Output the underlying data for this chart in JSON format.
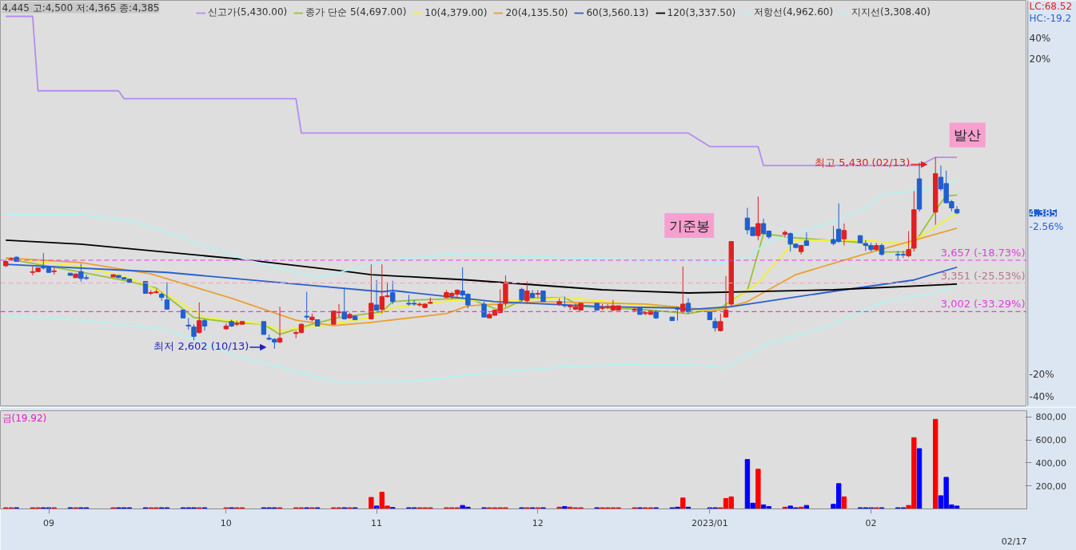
{
  "chart_data": [
    {
      "type": "candlestick",
      "log": true,
      "tick_labels": false,
      "legend": "top",
      "xlim": [
        "2022-08-23",
        "2023-03-02"
      ],
      "ylim": [
        2090,
        9920
      ],
      "x": [
        "2022-08-24",
        "2022-08-25",
        "2022-08-26",
        "2022-08-29",
        "2022-08-30",
        "2022-08-31",
        "2022-09-01",
        "2022-09-02",
        "2022-09-05",
        "2022-09-06",
        "2022-09-07",
        "2022-09-08",
        "2022-09-13",
        "2022-09-14",
        "2022-09-15",
        "2022-09-16",
        "2022-09-19",
        "2022-09-20",
        "2022-09-21",
        "2022-09-22",
        "2022-09-23",
        "2022-09-26",
        "2022-09-27",
        "2022-09-28",
        "2022-09-29",
        "2022-09-30",
        "2022-10-04",
        "2022-10-05",
        "2022-10-06",
        "2022-10-07",
        "2022-10-11",
        "2022-10-12",
        "2022-10-13",
        "2022-10-14",
        "2022-10-17",
        "2022-10-18",
        "2022-10-19",
        "2022-10-20",
        "2022-10-21",
        "2022-10-24",
        "2022-10-25",
        "2022-10-26",
        "2022-10-27",
        "2022-10-28",
        "2022-10-31",
        "2022-11-01",
        "2022-11-02",
        "2022-11-03",
        "2022-11-04",
        "2022-11-07",
        "2022-11-08",
        "2022-11-09",
        "2022-11-10",
        "2022-11-11",
        "2022-11-14",
        "2022-11-15",
        "2022-11-16",
        "2022-11-17",
        "2022-11-18",
        "2022-11-21",
        "2022-11-22",
        "2022-11-23",
        "2022-11-24",
        "2022-11-25",
        "2022-11-28",
        "2022-11-29",
        "2022-11-30",
        "2022-12-01",
        "2022-12-02",
        "2022-12-05",
        "2022-12-06",
        "2022-12-07",
        "2022-12-08",
        "2022-12-09",
        "2022-12-12",
        "2022-12-13",
        "2022-12-14",
        "2022-12-15",
        "2022-12-16",
        "2022-12-19",
        "2022-12-20",
        "2022-12-21",
        "2022-12-22",
        "2022-12-23",
        "2022-12-26",
        "2022-12-27",
        "2022-12-28",
        "2022-12-29",
        "2023-01-02",
        "2023-01-03",
        "2023-01-04",
        "2023-01-05",
        "2023-01-06",
        "2023-01-09",
        "2023-01-10",
        "2023-01-11",
        "2023-01-12",
        "2023-01-13",
        "2023-01-16",
        "2023-01-17",
        "2023-01-18",
        "2023-01-19",
        "2023-01-20",
        "2023-01-25",
        "2023-01-26",
        "2023-01-27",
        "2023-01-30",
        "2023-01-31",
        "2023-02-01",
        "2023-02-02",
        "2023-02-03",
        "2023-02-06",
        "2023-02-07",
        "2023-02-08",
        "2023-02-09",
        "2023-02-10",
        "2023-02-13",
        "2023-02-14",
        "2023-02-15",
        "2023-02-16",
        "2023-02-17"
      ],
      "ohlc": [
        [
          3580,
          3660,
          3560,
          3640
        ],
        [
          3670,
          3700,
          3650,
          3680
        ],
        [
          3700,
          3710,
          3640,
          3640
        ],
        [
          3490,
          3570,
          3450,
          3500
        ],
        [
          3500,
          3550,
          3500,
          3550
        ],
        [
          3570,
          3760,
          3530,
          3550
        ],
        [
          3570,
          3570,
          3490,
          3490
        ],
        [
          3500,
          3570,
          3460,
          3510
        ],
        [
          3480,
          3480,
          3450,
          3450
        ],
        [
          3420,
          3470,
          3420,
          3470
        ],
        [
          3500,
          3610,
          3370,
          3410
        ],
        [
          3420,
          3460,
          3390,
          3410
        ],
        [
          3430,
          3460,
          3430,
          3460
        ],
        [
          3450,
          3450,
          3420,
          3420
        ],
        [
          3420,
          3420,
          3400,
          3400
        ],
        [
          3400,
          3400,
          3350,
          3360
        ],
        [
          3370,
          3370,
          3220,
          3220
        ],
        [
          3220,
          3260,
          3200,
          3230
        ],
        [
          3230,
          3270,
          3220,
          3240
        ],
        [
          3210,
          3240,
          3130,
          3170
        ],
        [
          3140,
          3360,
          3030,
          3030
        ],
        [
          3020,
          3020,
          2930,
          2930
        ],
        [
          2850,
          2930,
          2800,
          2840
        ],
        [
          2830,
          2860,
          2690,
          2730
        ],
        [
          2770,
          3110,
          2760,
          2900
        ],
        [
          2900,
          2920,
          2790,
          2840
        ],
        [
          2810,
          2870,
          2800,
          2840
        ],
        [
          2890,
          2910,
          2830,
          2840
        ],
        [
          2860,
          2900,
          2840,
          2870
        ],
        [
          2860,
          2890,
          2860,
          2890
        ],
        [
          2890,
          2890,
          2750,
          2750
        ],
        [
          2710,
          2750,
          2690,
          2700
        ],
        [
          2700,
          2710,
          2602,
          2670
        ],
        [
          2670,
          3060,
          2660,
          2710
        ],
        [
          2760,
          2790,
          2710,
          2770
        ],
        [
          2770,
          2870,
          2760,
          2860
        ],
        [
          2950,
          3240,
          2910,
          2940
        ],
        [
          2910,
          2980,
          2890,
          2940
        ],
        [
          2910,
          2910,
          2840,
          2840
        ],
        [
          2860,
          3010,
          2860,
          3010
        ],
        [
          2990,
          3090,
          2940,
          3000
        ],
        [
          3000,
          3290,
          2910,
          2920
        ],
        [
          2930,
          2990,
          2920,
          2970
        ],
        [
          2950,
          2960,
          2910,
          2910
        ],
        [
          2920,
          3600,
          2910,
          3100
        ],
        [
          3080,
          3390,
          3020,
          3020
        ],
        [
          3030,
          3600,
          2980,
          3180
        ],
        [
          3180,
          3360,
          3170,
          3190
        ],
        [
          3230,
          3380,
          3090,
          3120
        ],
        [
          3100,
          3200,
          3070,
          3090
        ],
        [
          3100,
          3140,
          3070,
          3090
        ],
        [
          3080,
          3110,
          3060,
          3090
        ],
        [
          3050,
          3100,
          3040,
          3090
        ],
        [
          3100,
          3170,
          3090,
          3110
        ],
        [
          3170,
          3260,
          3160,
          3230
        ],
        [
          3190,
          3240,
          3150,
          3220
        ],
        [
          3210,
          3270,
          3160,
          3260
        ],
        [
          3250,
          3560,
          3160,
          3200
        ],
        [
          3210,
          3220,
          3040,
          3080
        ],
        [
          3090,
          3120,
          2940,
          2940
        ],
        [
          2930,
          2990,
          2930,
          2970
        ],
        [
          2960,
          3020,
          2960,
          3020
        ],
        [
          2990,
          3270,
          2990,
          3090
        ],
        [
          3100,
          3450,
          3060,
          3360
        ],
        [
          3270,
          3290,
          3120,
          3140
        ],
        [
          3130,
          3370,
          3100,
          3250
        ],
        [
          3220,
          3260,
          3160,
          3170
        ],
        [
          3210,
          3260,
          3170,
          3220
        ],
        [
          3250,
          3250,
          3120,
          3120
        ],
        [
          3090,
          3160,
          3070,
          3120
        ],
        [
          3080,
          3180,
          3050,
          3070
        ],
        [
          3060,
          3090,
          3020,
          3070
        ],
        [
          3030,
          3090,
          3020,
          3060
        ],
        [
          3020,
          3100,
          3020,
          3100
        ],
        [
          3100,
          3100,
          3020,
          3020
        ],
        [
          3040,
          3090,
          3020,
          3050
        ],
        [
          3050,
          3090,
          3030,
          3060
        ],
        [
          3020,
          3140,
          3010,
          3070
        ],
        [
          3020,
          3070,
          3020,
          3070
        ],
        [
          3020,
          3050,
          3000,
          3030
        ],
        [
          3050,
          3050,
          2970,
          2970
        ],
        [
          2980,
          3010,
          2960,
          2990
        ],
        [
          2970,
          3010,
          2970,
          3010
        ],
        [
          3000,
          3020,
          2920,
          2930
        ],
        [
          2940,
          2940,
          2900,
          2900
        ],
        [
          3040,
          3060,
          2900,
          3030
        ],
        [
          3010,
          3570,
          2980,
          3090
        ],
        [
          3100,
          3160,
          2980,
          3000
        ],
        [
          3000,
          3000,
          2910,
          2910
        ],
        [
          2890,
          2930,
          2780,
          2820
        ],
        [
          2790,
          2980,
          2780,
          2890
        ],
        [
          2940,
          3440,
          2940,
          3020
        ],
        [
          3090,
          3930,
          3060,
          3930
        ],
        [
          4300,
          4470,
          4040,
          4110
        ],
        [
          4150,
          4150,
          4020,
          4020
        ],
        [
          4020,
          4670,
          3950,
          4210
        ],
        [
          4210,
          4290,
          4050,
          4050
        ],
        [
          4090,
          4100,
          3970,
          4000
        ],
        [
          4040,
          4100,
          3990,
          4070
        ],
        [
          4050,
          4070,
          3780,
          3890
        ],
        [
          3890,
          3900,
          3830,
          3840
        ],
        [
          3780,
          3880,
          3740,
          3870
        ],
        [
          3940,
          4070,
          3870,
          3870
        ],
        [
          3960,
          4170,
          3870,
          3900
        ],
        [
          4120,
          4550,
          3910,
          3930
        ],
        [
          3970,
          4210,
          3870,
          4100
        ],
        [
          4020,
          4020,
          3910,
          3910
        ],
        [
          3900,
          3950,
          3790,
          3870
        ],
        [
          3870,
          3910,
          3780,
          3810
        ],
        [
          3810,
          3910,
          3790,
          3870
        ],
        [
          3870,
          3900,
          3720,
          3740
        ],
        [
          3740,
          3790,
          3660,
          3730
        ],
        [
          3740,
          3790,
          3690,
          3730
        ],
        [
          3720,
          4090,
          3700,
          3810
        ],
        [
          3830,
          4770,
          3780,
          4440
        ],
        [
          5000,
          5320,
          4410,
          4450
        ],
        [
          4400,
          5430,
          4190,
          5100
        ],
        [
          5030,
          5260,
          4770,
          4810
        ],
        [
          4910,
          5160,
          4550,
          4560
        ],
        [
          4580,
          4610,
          4410,
          4470
        ],
        [
          4445,
          4500,
          4365,
          4385
        ]
      ],
      "colors": [
        "#e02020",
        "#e02020",
        "#1f5fcf",
        "#e02020",
        "#e02020",
        "#1f5fcf",
        "#1f5fcf",
        "#e02020",
        "#1f5fcf",
        "#e02020",
        "#1f5fcf",
        "#1f5fcf",
        "#e02020",
        "#1f5fcf",
        "#1f5fcf",
        "#1f5fcf",
        "#1f5fcf",
        "#e02020",
        "#e02020",
        "#1f5fcf",
        "#1f5fcf",
        "#1f5fcf",
        "#1f5fcf",
        "#1f5fcf",
        "#e02020",
        "#1f5fcf",
        "#e02020",
        "#1f5fcf",
        "#e02020",
        "#e02020",
        "#1f5fcf",
        "#1f5fcf",
        "#1f5fcf",
        "#e02020",
        "#e02020",
        "#e02020",
        "#1f5fcf",
        "#e02020",
        "#1f5fcf",
        "#e02020",
        "#e02020",
        "#1f5fcf",
        "#e02020",
        "#1f5fcf",
        "#e02020",
        "#1f5fcf",
        "#e02020",
        "#e02020",
        "#1f5fcf",
        "#1f5fcf",
        "#1f5fcf",
        "#e02020",
        "#e02020",
        "#e02020",
        "#e02020",
        "#e02020",
        "#e02020",
        "#1f5fcf",
        "#1f5fcf",
        "#1f5fcf",
        "#e02020",
        "#e02020",
        "#e02020",
        "#e02020",
        "#1f5fcf",
        "#e02020",
        "#1f5fcf",
        "#e02020",
        "#1f5fcf",
        "#e02020",
        "#1f5fcf",
        "#e02020",
        "#e02020",
        "#e02020",
        "#1f5fcf",
        "#e02020",
        "#e02020",
        "#e02020",
        "#e02020",
        "#e02020",
        "#1f5fcf",
        "#e02020",
        "#e02020",
        "#1f5fcf",
        "#1f5fcf",
        "#1f5fcf",
        "#e02020",
        "#1f5fcf",
        "#1f5fcf",
        "#1f5fcf",
        "#e02020",
        "#e02020",
        "#e02020",
        "#1f5fcf",
        "#1f5fcf",
        "#e02020",
        "#1f5fcf",
        "#1f5fcf",
        "#e02020",
        "#1f5fcf",
        "#1f5fcf",
        "#e02020",
        "#1f5fcf",
        "#1f5fcf",
        "#1f5fcf",
        "#e02020",
        "#1f5fcf",
        "#1f5fcf",
        "#1f5fcf",
        "#e02020",
        "#1f5fcf",
        "#1f5fcf",
        "#1f5fcf",
        "#e02020",
        "#e02020",
        "#1f5fcf",
        "#e02020",
        "#1f5fcf",
        "#1f5fcf",
        "#1f5fcf",
        "#1f5fcf"
      ],
      "series": [
        {
          "type": "line",
          "name": "신고가(5,430.00)",
          "color": "#b48cf0",
          "x": [
            "2022-08-24",
            "2022-08-29",
            "2022-08-30",
            "2022-09-14",
            "2022-09-15",
            "2022-10-17",
            "2022-10-18",
            "2022-12-29",
            "2023-01-02",
            "2023-01-11",
            "2023-01-12",
            "2023-02-10",
            "2023-02-13",
            "2023-02-17"
          ],
          "values": [
            9330,
            9330,
            7010,
            7010,
            6800,
            6800,
            5960,
            5960,
            5660,
            5660,
            5260,
            5260,
            5430,
            5430
          ]
        },
        {
          "type": "line",
          "name": "종가 단순 5(4,697.00)",
          "color": "#99c433",
          "x": [
            "2022-08-24",
            "2022-09-07",
            "2022-09-16",
            "2022-09-21",
            "2022-09-28",
            "2022-10-05",
            "2022-10-11",
            "2022-10-14",
            "2022-10-20",
            "2022-10-25",
            "2022-11-02",
            "2022-11-04",
            "2022-11-09",
            "2022-11-18",
            "2022-11-24",
            "2022-11-29",
            "2022-12-06",
            "2022-12-09",
            "2022-12-21",
            "2022-12-29",
            "2023-01-04",
            "2023-01-09",
            "2023-01-12",
            "2023-01-18",
            "2023-01-30",
            "2023-02-03",
            "2023-02-08",
            "2023-02-14",
            "2023-02-15",
            "2023-02-17"
          ],
          "values": [
            3680,
            3495,
            3370,
            3285,
            2935,
            2880,
            2860,
            2750,
            2860,
            2935,
            3000,
            3120,
            3140,
            3160,
            3015,
            3160,
            3170,
            3060,
            3025,
            2980,
            3045,
            3255,
            4050,
            3985,
            3915,
            3775,
            3775,
            4560,
            4680,
            4697
          ]
        },
        {
          "type": "line",
          "name": "10(4,379.00)",
          "color": "#f2f230",
          "x": [
            "2022-08-24",
            "2022-09-07",
            "2022-09-16",
            "2022-09-23",
            "2022-09-30",
            "2022-10-11",
            "2022-10-14",
            "2022-10-21",
            "2022-10-31",
            "2022-11-04",
            "2022-11-16",
            "2022-11-23",
            "2022-12-07",
            "2022-12-21",
            "2023-01-02",
            "2023-01-04",
            "2023-01-11",
            "2023-01-18",
            "2023-01-31",
            "2023-02-08",
            "2023-02-17"
          ],
          "values": [
            3690,
            3570,
            3420,
            3205,
            2935,
            2860,
            2795,
            2835,
            2935,
            3045,
            3140,
            3120,
            3170,
            3070,
            3015,
            3025,
            3355,
            3950,
            3950,
            3890,
            4379
          ]
        },
        {
          "type": "line",
          "name": "20(4,135.50)",
          "color": "#eba030",
          "x": [
            "2022-08-24",
            "2022-09-07",
            "2022-09-20",
            "2022-10-05",
            "2022-10-17",
            "2022-10-24",
            "2022-10-31",
            "2022-11-14",
            "2022-11-18",
            "2022-12-02",
            "2022-12-21",
            "2023-01-03",
            "2023-01-04",
            "2023-01-09",
            "2023-01-18",
            "2023-01-31",
            "2023-02-08",
            "2023-02-17"
          ],
          "values": [
            3690,
            3625,
            3470,
            3160,
            2905,
            2845,
            2880,
            2980,
            3070,
            3120,
            3090,
            3015,
            3025,
            3120,
            3460,
            3750,
            3925,
            4135.5
          ]
        },
        {
          "type": "line",
          "name": "60(3,560.13)",
          "color": "#2a5fd0",
          "x": [
            "2022-08-24",
            "2022-09-23",
            "2022-10-20",
            "2022-11-02",
            "2022-11-04",
            "2022-11-23",
            "2022-12-13",
            "2022-12-27",
            "2022-12-29",
            "2023-01-06",
            "2023-01-26",
            "2023-02-09",
            "2023-02-17"
          ],
          "values": [
            3600,
            3490,
            3320,
            3240,
            3255,
            3120,
            3060,
            3045,
            3025,
            3060,
            3255,
            3390,
            3560.13
          ]
        },
        {
          "type": "line",
          "name": "120(3,337.50)",
          "color": "#000000",
          "x": [
            "2022-08-24",
            "2022-09-07",
            "2022-10-07",
            "2022-10-25",
            "2022-10-31",
            "2022-11-18",
            "2022-12-13",
            "2022-12-29",
            "2023-01-25",
            "2023-02-17"
          ],
          "values": [
            3950,
            3890,
            3670,
            3515,
            3460,
            3390,
            3265,
            3225,
            3265,
            3337.5
          ]
        },
        {
          "type": "line",
          "name": "저항선(4,962.60)",
          "color": "#b4f2f2",
          "x": [
            "2022-08-24",
            "2022-09-07",
            "2022-09-16",
            "2022-09-23",
            "2022-10-07",
            "2022-10-21",
            "2022-11-03",
            "2022-11-16",
            "2022-11-28",
            "2022-12-15",
            "2022-12-29",
            "2023-01-05",
            "2023-01-09",
            "2023-01-13",
            "2023-01-25",
            "2023-01-31",
            "2023-02-03",
            "2023-02-10",
            "2023-02-17"
          ],
          "values": [
            4358,
            4358,
            4265,
            4074,
            3681,
            3420,
            3657,
            3750,
            3715,
            3670,
            3646,
            3625,
            3700,
            3926,
            4240,
            4467,
            4710,
            4780,
            4962.6
          ]
        },
        {
          "type": "line",
          "name": "지지선(3,308.40)",
          "color": "#b4f2f2",
          "x": [
            "2022-08-24",
            "2022-09-07",
            "2022-09-23",
            "2022-10-07",
            "2022-10-25",
            "2022-11-08",
            "2022-11-22",
            "2022-12-06",
            "2022-12-20",
            "2022-12-29",
            "2023-01-05",
            "2023-01-12",
            "2023-01-25",
            "2023-02-03",
            "2023-02-13",
            "2023-02-17"
          ],
          "values": [
            2950,
            2910,
            2800,
            2516,
            2290,
            2300,
            2375,
            2430,
            2454,
            2454,
            2417,
            2635,
            2862,
            3110,
            3236,
            3308.4
          ]
        }
      ],
      "ref_lines": [
        {
          "axis": "y",
          "value": 3657,
          "label": "3,657 (-18.73%)",
          "color": "#e03ce0",
          "line_style": "dashed"
        },
        {
          "axis": "y",
          "value": 3351,
          "label": "3,351 (-25.53%)",
          "color": "#f2a0c0",
          "line_style": "dashed"
        },
        {
          "axis": "y",
          "value": 3002,
          "label": "3,002 (-33.29%)",
          "color": "#e03ce0",
          "line_style": "dashed"
        }
      ],
      "annotations": [
        "4,445 고:4,500 저:4,365 종:4,385",
        "LC:68.52",
        "HC:-19.2",
        "40%",
        "20%",
        "-20%",
        "-40%",
        "4,385",
        "-2.56%",
        {
          "text": "기준봉",
          "x": "2023-01-06",
          "y": 3930
        },
        {
          "text": "발산",
          "x": "2023-02-13",
          "y": 5430
        },
        {
          "text": "최고 5,430 (02/13)",
          "x": "2023-02-13",
          "y": 5430
        },
        {
          "text": "최저 2,602 (10/13)",
          "x": "2022-10-13",
          "y": 2602
        }
      ]
    },
    {
      "type": "bar",
      "xlim": [
        "2022-08-23",
        "2023-03-02"
      ],
      "ylim": [
        0,
        855
      ],
      "xticks": [
        {
          "value": "2022-09-01",
          "label": "09"
        },
        {
          "value": "2022-10-04",
          "label": "10"
        },
        {
          "value": "2022-11-01",
          "label": "11"
        },
        {
          "value": "2022-12-01",
          "label": "12"
        },
        {
          "value": "2023-01-02",
          "label": "2023/01"
        },
        {
          "value": "2023-02-01",
          "label": "02"
        }
      ],
      "yticks": [
        {
          "value": 200,
          "label": "200,00"
        },
        {
          "value": 400,
          "label": "400,00"
        },
        {
          "value": 600,
          "label": "600,00"
        },
        {
          "value": 800,
          "label": "800,00"
        }
      ],
      "x": [
        "2022-08-24",
        "2022-08-25",
        "2022-08-26",
        "2022-08-29",
        "2022-08-30",
        "2022-08-31",
        "2022-09-01",
        "2022-09-02",
        "2022-09-05",
        "2022-09-06",
        "2022-09-07",
        "2022-09-08",
        "2022-09-13",
        "2022-09-14",
        "2022-09-15",
        "2022-09-16",
        "2022-09-19",
        "2022-09-20",
        "2022-09-21",
        "2022-09-22",
        "2022-09-23",
        "2022-09-26",
        "2022-09-27",
        "2022-09-28",
        "2022-09-29",
        "2022-09-30",
        "2022-10-04",
        "2022-10-05",
        "2022-10-06",
        "2022-10-07",
        "2022-10-11",
        "2022-10-12",
        "2022-10-13",
        "2022-10-14",
        "2022-10-17",
        "2022-10-18",
        "2022-10-19",
        "2022-10-20",
        "2022-10-21",
        "2022-10-24",
        "2022-10-25",
        "2022-10-26",
        "2022-10-27",
        "2022-10-28",
        "2022-10-31",
        "2022-11-01",
        "2022-11-02",
        "2022-11-03",
        "2022-11-04",
        "2022-11-07",
        "2022-11-08",
        "2022-11-09",
        "2022-11-10",
        "2022-11-11",
        "2022-11-14",
        "2022-11-15",
        "2022-11-16",
        "2022-11-17",
        "2022-11-18",
        "2022-11-21",
        "2022-11-22",
        "2022-11-23",
        "2022-11-24",
        "2022-11-25",
        "2022-11-28",
        "2022-11-29",
        "2022-11-30",
        "2022-12-01",
        "2022-12-02",
        "2022-12-05",
        "2022-12-06",
        "2022-12-07",
        "2022-12-08",
        "2022-12-09",
        "2022-12-12",
        "2022-12-13",
        "2022-12-14",
        "2022-12-15",
        "2022-12-16",
        "2022-12-19",
        "2022-12-20",
        "2022-12-21",
        "2022-12-22",
        "2022-12-23",
        "2022-12-26",
        "2022-12-27",
        "2022-12-28",
        "2022-12-29",
        "2023-01-02",
        "2023-01-03",
        "2023-01-04",
        "2023-01-05",
        "2023-01-06",
        "2023-01-09",
        "2023-01-10",
        "2023-01-11",
        "2023-01-12",
        "2023-01-13",
        "2023-01-16",
        "2023-01-17",
        "2023-01-18",
        "2023-01-19",
        "2023-01-20",
        "2023-01-25",
        "2023-01-26",
        "2023-01-27",
        "2023-01-30",
        "2023-01-31",
        "2023-02-01",
        "2023-02-02",
        "2023-02-03",
        "2023-02-06",
        "2023-02-07",
        "2023-02-08",
        "2023-02-09",
        "2023-02-10",
        "2023-02-13",
        "2023-02-14",
        "2023-02-15",
        "2023-02-16",
        "2023-02-17"
      ],
      "values": [
        10,
        10,
        10,
        10,
        10,
        10,
        10,
        10,
        10,
        10,
        10,
        10,
        10,
        10,
        10,
        10,
        10,
        10,
        10,
        10,
        10,
        10,
        10,
        10,
        10,
        10,
        10,
        10,
        10,
        10,
        10,
        10,
        10,
        10,
        10,
        10,
        10,
        10,
        10,
        10,
        10,
        10,
        10,
        10,
        100,
        25,
        145,
        25,
        12,
        10,
        10,
        10,
        10,
        10,
        10,
        10,
        10,
        30,
        15,
        10,
        10,
        10,
        10,
        10,
        10,
        10,
        10,
        10,
        10,
        15,
        20,
        15,
        10,
        10,
        10,
        10,
        10,
        10,
        10,
        10,
        10,
        10,
        10,
        10,
        10,
        15,
        95,
        15,
        10,
        10,
        10,
        90,
        105,
        430,
        50,
        345,
        35,
        20,
        15,
        25,
        10,
        15,
        30,
        40,
        220,
        105,
        10,
        10,
        10,
        10,
        10,
        10,
        10,
        30,
        620,
        525,
        780,
        115,
        275,
        35,
        25
      ],
      "colors": [
        "#ff0000",
        "#ff0000",
        "#0000ff",
        "#ff0000",
        "#ff0000",
        "#0000ff",
        "#0000ff",
        "#ff0000",
        "#0000ff",
        "#ff0000",
        "#0000ff",
        "#0000ff",
        "#ff0000",
        "#0000ff",
        "#0000ff",
        "#0000ff",
        "#0000ff",
        "#ff0000",
        "#ff0000",
        "#0000ff",
        "#0000ff",
        "#0000ff",
        "#0000ff",
        "#0000ff",
        "#ff0000",
        "#0000ff",
        "#ff0000",
        "#0000ff",
        "#ff0000",
        "#ff0000",
        "#0000ff",
        "#0000ff",
        "#0000ff",
        "#ff0000",
        "#ff0000",
        "#ff0000",
        "#0000ff",
        "#ff0000",
        "#0000ff",
        "#ff0000",
        "#ff0000",
        "#0000ff",
        "#ff0000",
        "#0000ff",
        "#ff0000",
        "#0000ff",
        "#ff0000",
        "#ff0000",
        "#0000ff",
        "#0000ff",
        "#0000ff",
        "#ff0000",
        "#ff0000",
        "#ff0000",
        "#ff0000",
        "#ff0000",
        "#ff0000",
        "#0000ff",
        "#0000ff",
        "#0000ff",
        "#ff0000",
        "#ff0000",
        "#ff0000",
        "#ff0000",
        "#0000ff",
        "#ff0000",
        "#0000ff",
        "#ff0000",
        "#0000ff",
        "#ff0000",
        "#0000ff",
        "#ff0000",
        "#ff0000",
        "#ff0000",
        "#0000ff",
        "#ff0000",
        "#ff0000",
        "#ff0000",
        "#ff0000",
        "#ff0000",
        "#0000ff",
        "#ff0000",
        "#ff0000",
        "#0000ff",
        "#0000ff",
        "#0000ff",
        "#ff0000",
        "#0000ff",
        "#0000ff",
        "#0000ff",
        "#ff0000",
        "#ff0000",
        "#ff0000",
        "#0000ff",
        "#0000ff",
        "#ff0000",
        "#0000ff",
        "#0000ff",
        "#ff0000",
        "#0000ff",
        "#0000ff",
        "#ff0000",
        "#0000ff",
        "#0000ff",
        "#0000ff",
        "#ff0000",
        "#0000ff",
        "#0000ff",
        "#0000ff",
        "#ff0000",
        "#0000ff",
        "#0000ff",
        "#0000ff",
        "#ff0000",
        "#ff0000",
        "#0000ff",
        "#ff0000",
        "#0000ff",
        "#0000ff",
        "#0000ff",
        "#0000ff"
      ],
      "annotations": [
        "금(19.92)",
        "02/17"
      ]
    }
  ]
}
